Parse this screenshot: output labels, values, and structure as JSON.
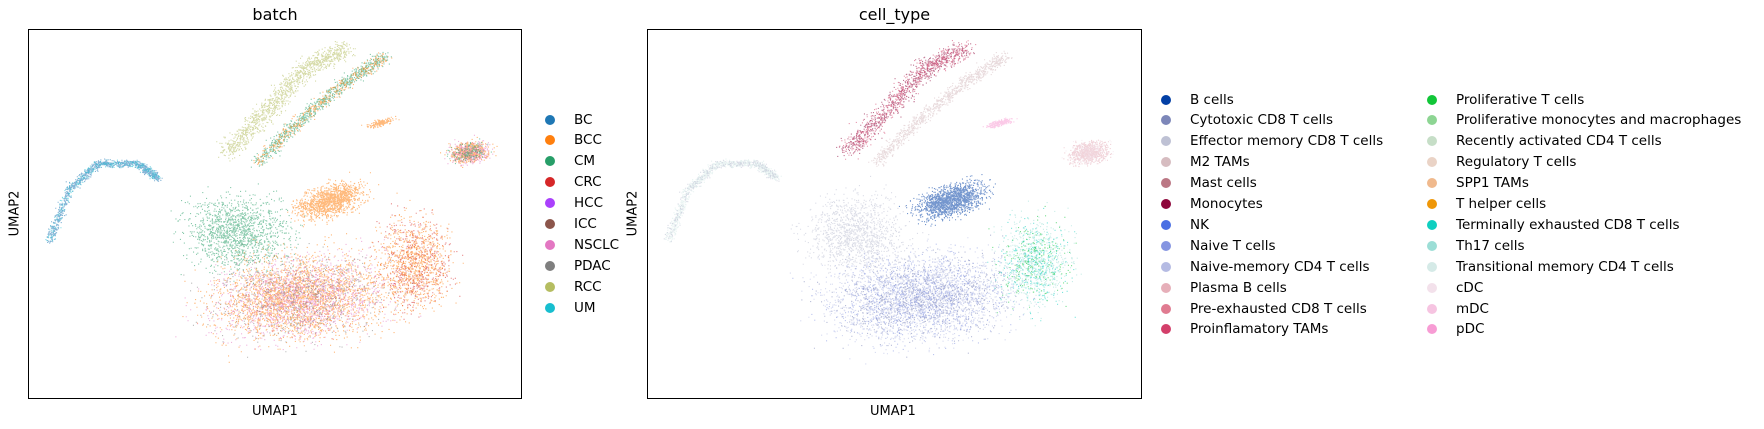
{
  "colors": {
    "batch": {
      "BC": "#1f77b4",
      "BCC": "#ff7f0e",
      "CM": "#279e68",
      "CRC": "#d62728",
      "HCC": "#aa40fc",
      "ICC": "#8c564b",
      "NSCLC": "#e377c2",
      "PDAC": "#7f7f7f",
      "RCC": "#b5bd61",
      "UM": "#17becf"
    },
    "cell_type": {
      "B cells": "#023fa5",
      "Cytotoxic CD8 T cells": "#7d87b9",
      "Effector memory CD8 T cells": "#bec1d4",
      "M2 TAMs": "#d6bcc0",
      "Mast cells": "#bb7784",
      "Monocytes": "#8e063b",
      "NK": "#4a6fe3",
      "Naive T cells": "#8595e1",
      "Naive-memory CD4 T cells": "#b5bbe3",
      "Plasma B cells": "#e6afb9",
      "Pre-exhausted CD8 T cells": "#e07b91",
      "Proinflamatory TAMs": "#d33f6a",
      "Proliferative T cells": "#11c638",
      "Proliferative monocytes and macrophages": "#8dd593",
      "Recently activated CD4 T cells": "#c6dec7",
      "Regulatory T cells": "#ead3c6",
      "SPP1 TAMs": "#f0b98d",
      "T helper cells": "#ef9708",
      "Terminally exhausted CD8 T cells": "#0fcfc0",
      "Th17 cells": "#9cded6",
      "Transitional memory CD4 T cells": "#d5eae7",
      "cDC": "#f3e1eb",
      "mDC": "#f6c4e1",
      "pDC": "#f79cd4"
    }
  },
  "chart_data": [
    {
      "type": "scatter",
      "title": "batch",
      "xlabel": "UMAP1",
      "ylabel": "UMAP2",
      "grid": false,
      "ticks": "none",
      "legend": {
        "placement": "right",
        "categories": [
          "BC",
          "BCC",
          "CM",
          "CRC",
          "HCC",
          "ICC",
          "NSCLC",
          "PDAC",
          "RCC",
          "UM"
        ]
      }
    },
    {
      "type": "scatter",
      "title": "cell_type",
      "xlabel": "UMAP1",
      "ylabel": "UMAP2",
      "grid": false,
      "ticks": "none",
      "legend": {
        "placement": "right",
        "columns": 2,
        "categories": [
          "B cells",
          "Cytotoxic CD8 T cells",
          "Effector memory CD8 T cells",
          "M2 TAMs",
          "Mast cells",
          "Monocytes",
          "NK",
          "Naive T cells",
          "Naive-memory CD4 T cells",
          "Plasma B cells",
          "Pre-exhausted CD8 T cells",
          "Proinflamatory TAMs",
          "Proliferative T cells",
          "Proliferative monocytes and macrophages",
          "Recently activated CD4 T cells",
          "Regulatory T cells",
          "SPP1 TAMs",
          "T helper cells",
          "Terminally exhausted CD8 T cells",
          "Th17 cells",
          "Transitional memory CD4 T cells",
          "cDC",
          "mDC",
          "pDC"
        ]
      }
    }
  ]
}
